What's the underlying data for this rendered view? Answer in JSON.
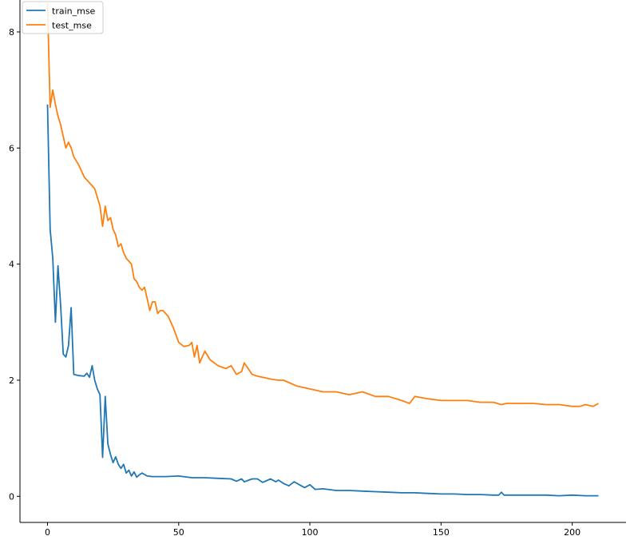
{
  "chart_data": {
    "type": "line",
    "title": "",
    "xlabel": "",
    "ylabel": "",
    "xlim": [
      -10.5,
      220.5
    ],
    "ylim": [
      -0.45,
      8.55
    ],
    "xticks": [
      0,
      50,
      100,
      150,
      200
    ],
    "yticks": [
      0,
      2,
      4,
      6,
      8
    ],
    "grid": false,
    "legend_position": "top-left",
    "colors": {
      "train_mse": "#1f77b4",
      "test_mse": "#ff7f0e"
    },
    "series": [
      {
        "name": "train_mse",
        "x": [
          0,
          1,
          2,
          3,
          4,
          5,
          6,
          7,
          8,
          9,
          10,
          12,
          14,
          15,
          16,
          17,
          18,
          19,
          20,
          21,
          22,
          23,
          24,
          25,
          26,
          27,
          28,
          29,
          30,
          31,
          32,
          33,
          34,
          35,
          36,
          38,
          40,
          45,
          50,
          55,
          60,
          65,
          70,
          72,
          74,
          75,
          78,
          80,
          82,
          85,
          87,
          88,
          90,
          92,
          94,
          96,
          98,
          100,
          102,
          105,
          110,
          115,
          120,
          125,
          130,
          135,
          140,
          145,
          150,
          155,
          160,
          165,
          170,
          172,
          173,
          174,
          180,
          185,
          190,
          195,
          200,
          205,
          210
        ],
        "y": [
          6.75,
          4.6,
          4.1,
          3.0,
          3.97,
          3.3,
          2.45,
          2.4,
          2.6,
          3.25,
          2.1,
          2.08,
          2.07,
          2.12,
          2.05,
          2.25,
          2.0,
          1.85,
          1.75,
          0.67,
          1.72,
          0.9,
          0.72,
          0.58,
          0.68,
          0.55,
          0.48,
          0.55,
          0.4,
          0.45,
          0.35,
          0.42,
          0.33,
          0.37,
          0.4,
          0.35,
          0.34,
          0.34,
          0.35,
          0.32,
          0.32,
          0.31,
          0.3,
          0.26,
          0.3,
          0.25,
          0.3,
          0.3,
          0.24,
          0.3,
          0.25,
          0.28,
          0.22,
          0.18,
          0.25,
          0.2,
          0.15,
          0.2,
          0.12,
          0.13,
          0.1,
          0.1,
          0.09,
          0.08,
          0.07,
          0.06,
          0.06,
          0.05,
          0.04,
          0.04,
          0.03,
          0.03,
          0.02,
          0.02,
          0.07,
          0.02,
          0.02,
          0.02,
          0.02,
          0.01,
          0.02,
          0.01,
          0.01
        ]
      },
      {
        "name": "test_mse",
        "x": [
          0,
          1,
          2,
          3,
          4,
          5,
          6,
          7,
          8,
          9,
          10,
          12,
          14,
          15,
          16,
          17,
          18,
          19,
          20,
          21,
          22,
          23,
          24,
          25,
          26,
          27,
          28,
          29,
          30,
          31,
          32,
          33,
          34,
          35,
          36,
          37,
          38,
          39,
          40,
          41,
          42,
          43,
          44,
          45,
          46,
          47,
          48,
          50,
          52,
          54,
          55,
          56,
          57,
          58,
          60,
          62,
          65,
          68,
          70,
          72,
          74,
          75,
          78,
          80,
          85,
          88,
          90,
          95,
          100,
          105,
          110,
          115,
          120,
          125,
          130,
          135,
          138,
          140,
          145,
          150,
          155,
          160,
          165,
          170,
          173,
          175,
          180,
          185,
          190,
          195,
          200,
          203,
          205,
          208,
          210
        ],
        "y": [
          8.5,
          6.7,
          7.0,
          6.75,
          6.55,
          6.4,
          6.2,
          6.0,
          6.1,
          6.0,
          5.85,
          5.7,
          5.5,
          5.45,
          5.4,
          5.35,
          5.3,
          5.15,
          5.0,
          4.65,
          5.0,
          4.75,
          4.8,
          4.6,
          4.5,
          4.3,
          4.35,
          4.2,
          4.1,
          4.05,
          4.0,
          3.75,
          3.7,
          3.6,
          3.55,
          3.6,
          3.4,
          3.2,
          3.35,
          3.35,
          3.15,
          3.2,
          3.2,
          3.15,
          3.1,
          3.0,
          2.9,
          2.65,
          2.58,
          2.6,
          2.65,
          2.4,
          2.6,
          2.3,
          2.5,
          2.35,
          2.25,
          2.2,
          2.25,
          2.1,
          2.15,
          2.3,
          2.1,
          2.07,
          2.02,
          2.0,
          2.0,
          1.9,
          1.85,
          1.8,
          1.8,
          1.75,
          1.8,
          1.72,
          1.72,
          1.65,
          1.6,
          1.72,
          1.68,
          1.65,
          1.65,
          1.65,
          1.62,
          1.62,
          1.58,
          1.6,
          1.6,
          1.6,
          1.58,
          1.58,
          1.55,
          1.55,
          1.58,
          1.55,
          1.6
        ]
      }
    ]
  }
}
